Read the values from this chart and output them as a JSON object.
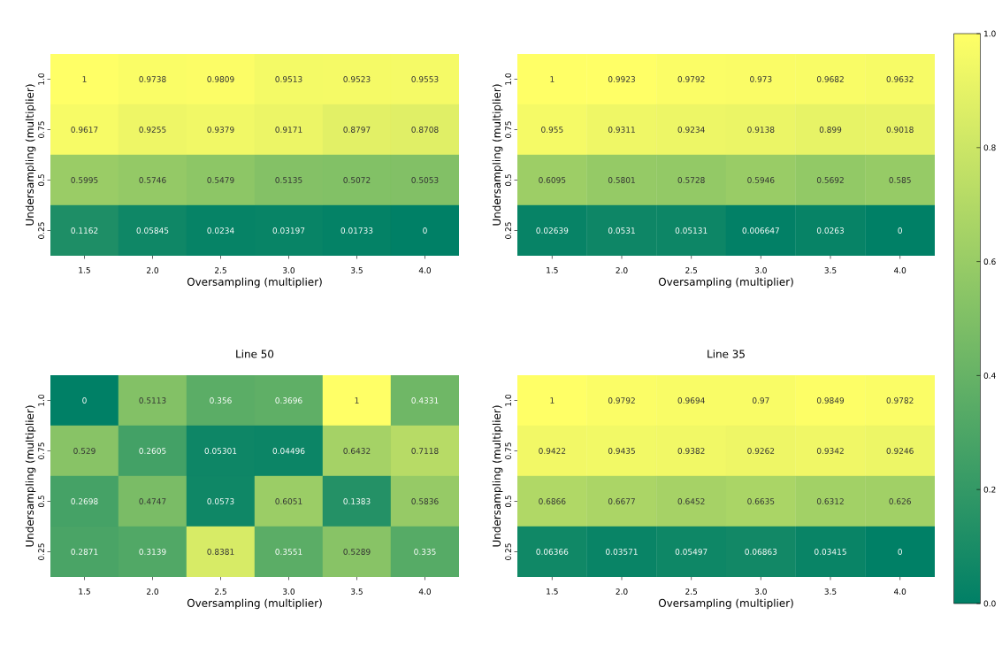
{
  "chart_data": [
    {
      "type": "heatmap",
      "xlabel": "Oversampling (multiplier)",
      "ylabel": "Undersampling (multiplier)",
      "categories": [
        "1.5",
        "2.0",
        "2.5",
        "3.0",
        "3.5",
        "4.0"
      ],
      "y_categories": [
        "1.0",
        "0.75",
        "0.5",
        "0.25"
      ],
      "data_labels": true,
      "cells": [
        [
          1,
          0.9738,
          0.9809,
          0.9513,
          0.9523,
          0.9553
        ],
        [
          0.9617,
          0.9255,
          0.9379,
          0.9171,
          0.8797,
          0.8708
        ],
        [
          0.5995,
          0.5746,
          0.5479,
          0.5135,
          0.5072,
          0.5053
        ],
        [
          0.1162,
          0.05845,
          0.0234,
          0.03197,
          0.01733,
          0
        ]
      ]
    },
    {
      "type": "heatmap",
      "xlabel": "Oversampling (multiplier)",
      "ylabel": "Undersampling (multiplier)",
      "categories": [
        "1.5",
        "2.0",
        "2.5",
        "3.0",
        "3.5",
        "4.0"
      ],
      "y_categories": [
        "1.0",
        "0.75",
        "0.5",
        "0.25"
      ],
      "data_labels": true,
      "clim": [
        0,
        1
      ],
      "cticks": [
        {
          "value": 0,
          "label": "0.0"
        },
        {
          "value": 0.2,
          "label": "0.2"
        },
        {
          "value": 0.4,
          "label": "0.4"
        },
        {
          "value": 0.6,
          "label": "0.6"
        },
        {
          "value": 0.8,
          "label": "0.8"
        },
        {
          "value": 1,
          "label": "1.0"
        }
      ],
      "cells": [
        [
          1,
          0.9923,
          0.9792,
          0.973,
          0.9682,
          0.9632
        ],
        [
          0.955,
          0.9311,
          0.9234,
          0.9138,
          0.899,
          0.9018
        ],
        [
          0.6095,
          0.5801,
          0.5728,
          0.5946,
          0.5692,
          0.585
        ],
        [
          0.02639,
          0.0531,
          0.05131,
          0.006647,
          0.0263,
          0
        ]
      ]
    },
    {
      "type": "heatmap",
      "title": "Line 50",
      "xlabel": "Oversampling (multiplier)",
      "ylabel": "Undersampling (multiplier)",
      "categories": [
        "1.5",
        "2.0",
        "2.5",
        "3.0",
        "3.5",
        "4.0"
      ],
      "y_categories": [
        "1.0",
        "0.75",
        "0.5",
        "0.25"
      ],
      "data_labels": true,
      "cells": [
        [
          0,
          0.5113,
          0.356,
          0.3696,
          1,
          0.4331
        ],
        [
          0.529,
          0.2605,
          0.05301,
          0.04496,
          0.6432,
          0.7118
        ],
        [
          0.2698,
          0.4747,
          0.0573,
          0.6051,
          0.1383,
          0.5836
        ],
        [
          0.2871,
          0.3139,
          0.8381,
          0.3551,
          0.5289,
          0.335
        ]
      ]
    },
    {
      "type": "heatmap",
      "title": "Line 35",
      "xlabel": "Oversampling (multiplier)",
      "ylabel": "Undersampling (multiplier)",
      "categories": [
        "1.5",
        "2.0",
        "2.5",
        "3.0",
        "3.5",
        "4.0"
      ],
      "y_categories": [
        "1.0",
        "0.75",
        "0.5",
        "0.25"
      ],
      "data_labels": true,
      "cells": [
        [
          1,
          0.9792,
          0.9694,
          0.97,
          0.9849,
          0.9782
        ],
        [
          0.9422,
          0.9435,
          0.9382,
          0.9262,
          0.9342,
          0.9246
        ],
        [
          0.6866,
          0.6677,
          0.6452,
          0.6635,
          0.6312,
          0.626
        ],
        [
          0.06366,
          0.03571,
          0.05497,
          0.06863,
          0.03415,
          0
        ]
      ]
    }
  ]
}
